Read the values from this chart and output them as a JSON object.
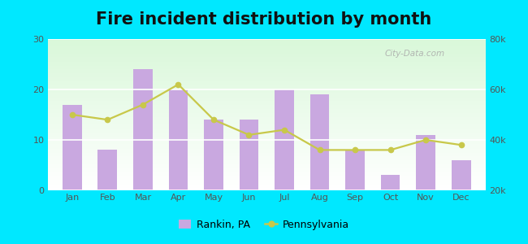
{
  "title": "Fire incident distribution by month",
  "months": [
    "Jan",
    "Feb",
    "Mar",
    "Apr",
    "May",
    "Jun",
    "Jul",
    "Aug",
    "Sep",
    "Oct",
    "Nov",
    "Dec"
  ],
  "rankin_values": [
    17,
    8,
    24,
    20,
    14,
    14,
    20,
    19,
    8,
    3,
    11,
    6
  ],
  "pennsylvania_values": [
    15,
    14,
    17,
    21,
    14,
    11,
    12,
    8,
    8,
    8,
    10,
    9
  ],
  "bar_color": "#c9a8e0",
  "line_color": "#c8c84a",
  "background_outer": "#00e8ff",
  "ylim_left": [
    0,
    30
  ],
  "ylim_right": [
    20000,
    80000
  ],
  "yticks_left": [
    0,
    10,
    20,
    30
  ],
  "yticks_right": [
    20000,
    40000,
    60000,
    80000
  ],
  "ytick_labels_right": [
    "20k",
    "40k",
    "60k",
    "80k"
  ],
  "legend_label_bar": "Rankin, PA",
  "legend_label_line": "Pennsylvania",
  "watermark": "City-Data.com",
  "title_fontsize": 15,
  "tick_fontsize": 8,
  "tick_color": "#555555"
}
